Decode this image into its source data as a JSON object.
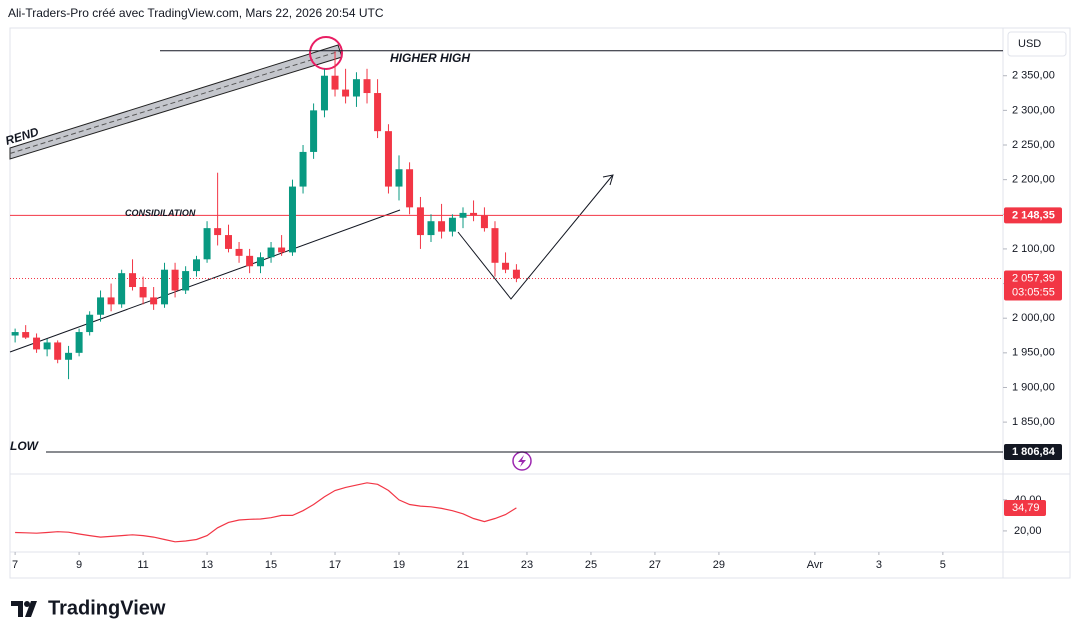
{
  "header": "Ali-Traders-Pro créé avec TradingView.com, Mars 22, 2026 20:54 UTC",
  "currency": "USD",
  "logo": "TradingView",
  "chart_data": {
    "type": "candlestick",
    "x": [
      7,
      7.33,
      7.67,
      8,
      8.33,
      8.67,
      9,
      9.33,
      9.67,
      10,
      10.33,
      10.67,
      11,
      11.33,
      11.67,
      12,
      12.33,
      12.67,
      13,
      13.33,
      13.67,
      14,
      14.33,
      14.67,
      15,
      15.33,
      15.67,
      16,
      16.33,
      16.67,
      17,
      17.33,
      17.67,
      18,
      18.33,
      18.67,
      19,
      19.33,
      19.67,
      20,
      20.33,
      20.67,
      21,
      21.33,
      21.67,
      22,
      22.33,
      22.67
    ],
    "open": [
      1975,
      1980,
      1972,
      1955,
      1965,
      1940,
      1950,
      1980,
      2005,
      2030,
      2020,
      2065,
      2045,
      2030,
      2020,
      2070,
      2040,
      2068,
      2085,
      2130,
      2120,
      2100,
      2090,
      2075,
      2088,
      2102,
      2095,
      2190,
      2240,
      2300,
      2350,
      2330,
      2320,
      2345,
      2325,
      2270,
      2190,
      2215,
      2160,
      2120,
      2140,
      2125,
      2145,
      2152,
      2148,
      2130,
      2080,
      2070
    ],
    "high": [
      1985,
      1990,
      1978,
      1970,
      1968,
      1960,
      1985,
      2010,
      2040,
      2050,
      2070,
      2085,
      2060,
      2045,
      2080,
      2080,
      2075,
      2090,
      2140,
      2210,
      2135,
      2110,
      2100,
      2095,
      2110,
      2120,
      2200,
      2250,
      2310,
      2360,
      2385,
      2360,
      2355,
      2360,
      2345,
      2280,
      2235,
      2225,
      2175,
      2150,
      2165,
      2150,
      2160,
      2170,
      2160,
      2140,
      2095,
      2078
    ],
    "low": [
      1965,
      1970,
      1950,
      1945,
      1935,
      1912,
      1945,
      1975,
      1995,
      2010,
      2015,
      2040,
      2020,
      2012,
      2015,
      2030,
      2035,
      2060,
      2080,
      2105,
      2095,
      2080,
      2065,
      2065,
      2080,
      2090,
      2090,
      2180,
      2230,
      2290,
      2320,
      2310,
      2305,
      2310,
      2260,
      2180,
      2170,
      2150,
      2100,
      2110,
      2115,
      2118,
      2130,
      2140,
      2125,
      2060,
      2065,
      2052
    ],
    "close": [
      1980,
      1972,
      1955,
      1965,
      1940,
      1950,
      1980,
      2005,
      2030,
      2020,
      2065,
      2045,
      2030,
      2020,
      2070,
      2040,
      2068,
      2085,
      2130,
      2120,
      2100,
      2090,
      2075,
      2088,
      2102,
      2095,
      2190,
      2240,
      2300,
      2350,
      2330,
      2320,
      2345,
      2325,
      2270,
      2190,
      2215,
      2160,
      2120,
      2140,
      2125,
      2145,
      2152,
      2148,
      2130,
      2080,
      2070,
      2057.39
    ],
    "up_color": "#089981",
    "down_color": "#f23645",
    "last_close_label": "2 057,39",
    "countdown": "03:05:55",
    "xlim": [
      6.84,
      37.88
    ],
    "xticks": [
      7,
      9,
      11,
      13,
      15,
      17,
      19,
      21,
      23,
      25,
      27,
      29,
      {
        "value": 32,
        "label": "Avr"
      },
      {
        "value": 34,
        "label": "3"
      },
      {
        "value": 36,
        "label": "5"
      }
    ],
    "ylim": [
      1778,
      2416
    ],
    "yticks": [
      {
        "value": 1850,
        "label": "1 850,00"
      },
      {
        "value": 1900,
        "label": "1 900,00"
      },
      {
        "value": 1950,
        "label": "1 950,00"
      },
      {
        "value": 2000,
        "label": "2 000,00"
      },
      {
        "value": 2050,
        "label": "2 050,00"
      },
      {
        "value": 2100,
        "label": "2 100,00"
      },
      {
        "value": 2150,
        "label": "2 150,00"
      },
      {
        "value": 2200,
        "label": "2 200,00"
      },
      {
        "value": 2250,
        "label": "2 250,00"
      },
      {
        "value": 2300,
        "label": "2 300,00"
      },
      {
        "value": 2350,
        "label": "2 350,00"
      }
    ],
    "levels": [
      {
        "name": "HIGHER HIGH",
        "value": 2386
      },
      {
        "name": "CONSIDILATION",
        "value": 2148.35,
        "value_label": "2 148,35"
      },
      {
        "name": "LOW",
        "value": 1806.84,
        "value_label": "1 806,84"
      }
    ],
    "trend_label": "REND",
    "indicator": {
      "color": "#f23645",
      "values": [
        19,
        18.8,
        18.5,
        19,
        19.5,
        19.2,
        18,
        17,
        16,
        16.5,
        17,
        17.5,
        17,
        16,
        14.5,
        13,
        13.5,
        14.5,
        17,
        22,
        25.5,
        27,
        27.5,
        27.7,
        28.5,
        30,
        30,
        33,
        37,
        42,
        46,
        48,
        49.5,
        51,
        50,
        46,
        40,
        37,
        36,
        35.5,
        34.5,
        33,
        31,
        28,
        26,
        28,
        30.5,
        34.79
      ],
      "last_label": "34,79",
      "ylim": [
        9,
        56
      ],
      "yticks": [
        {
          "value": 40,
          "label": "40,00"
        },
        {
          "value": 20,
          "label": "20,00"
        }
      ]
    }
  }
}
